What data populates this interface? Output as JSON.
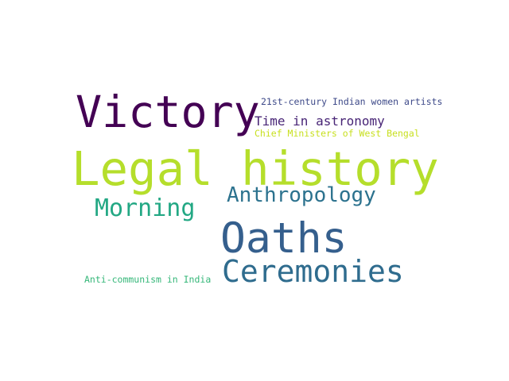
{
  "words": [
    {
      "key": "legal",
      "text": "Legal history",
      "color": "#b5de2b"
    },
    {
      "key": "victory",
      "text": "Victory",
      "color": "#440154"
    },
    {
      "key": "oaths",
      "text": "Oaths",
      "color": "#355f8d"
    },
    {
      "key": "cere",
      "text": "Ceremonies",
      "color": "#2f6c8e"
    },
    {
      "key": "anthro",
      "text": "Anthropology",
      "color": "#2c728e"
    },
    {
      "key": "morning",
      "text": "Morning",
      "color": "#23a884"
    },
    {
      "key": "time",
      "text": "Time in astronomy",
      "color": "#482576"
    },
    {
      "key": "artists",
      "text": "21st-century Indian women artists",
      "color": "#3e4a89"
    },
    {
      "key": "chief",
      "text": "Chief Ministers of West Bengal",
      "color": "#c8e020"
    },
    {
      "key": "anti",
      "text": "Anti-communism in India",
      "color": "#35b779"
    }
  ]
}
